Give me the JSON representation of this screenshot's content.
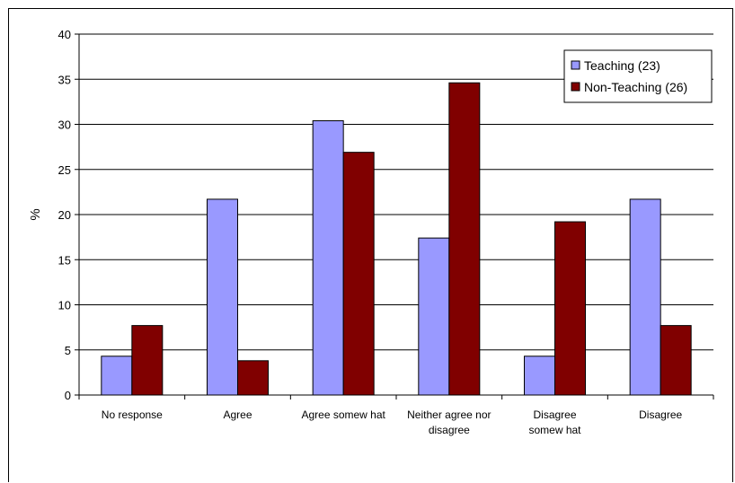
{
  "chart_data": {
    "type": "bar",
    "title": "",
    "xlabel": "",
    "ylabel": "%",
    "ylim": [
      0,
      40
    ],
    "yticks": [
      0,
      5,
      10,
      15,
      20,
      25,
      30,
      35,
      40
    ],
    "grid": true,
    "legend_position": "top-right",
    "categories": [
      [
        "No response"
      ],
      [
        "Agree"
      ],
      [
        "Agree somew hat"
      ],
      [
        "Neither agree nor",
        "disagree"
      ],
      [
        "Disagree",
        "somew hat"
      ],
      [
        "Disagree"
      ]
    ],
    "series": [
      {
        "name": "Teaching (23)",
        "color": "#9999ff",
        "values": [
          4.3,
          21.7,
          30.4,
          17.4,
          4.3,
          21.7
        ]
      },
      {
        "name": "Non-Teaching (26)",
        "color": "#800000",
        "values": [
          7.7,
          3.8,
          26.9,
          34.6,
          19.2,
          7.7
        ]
      }
    ]
  }
}
